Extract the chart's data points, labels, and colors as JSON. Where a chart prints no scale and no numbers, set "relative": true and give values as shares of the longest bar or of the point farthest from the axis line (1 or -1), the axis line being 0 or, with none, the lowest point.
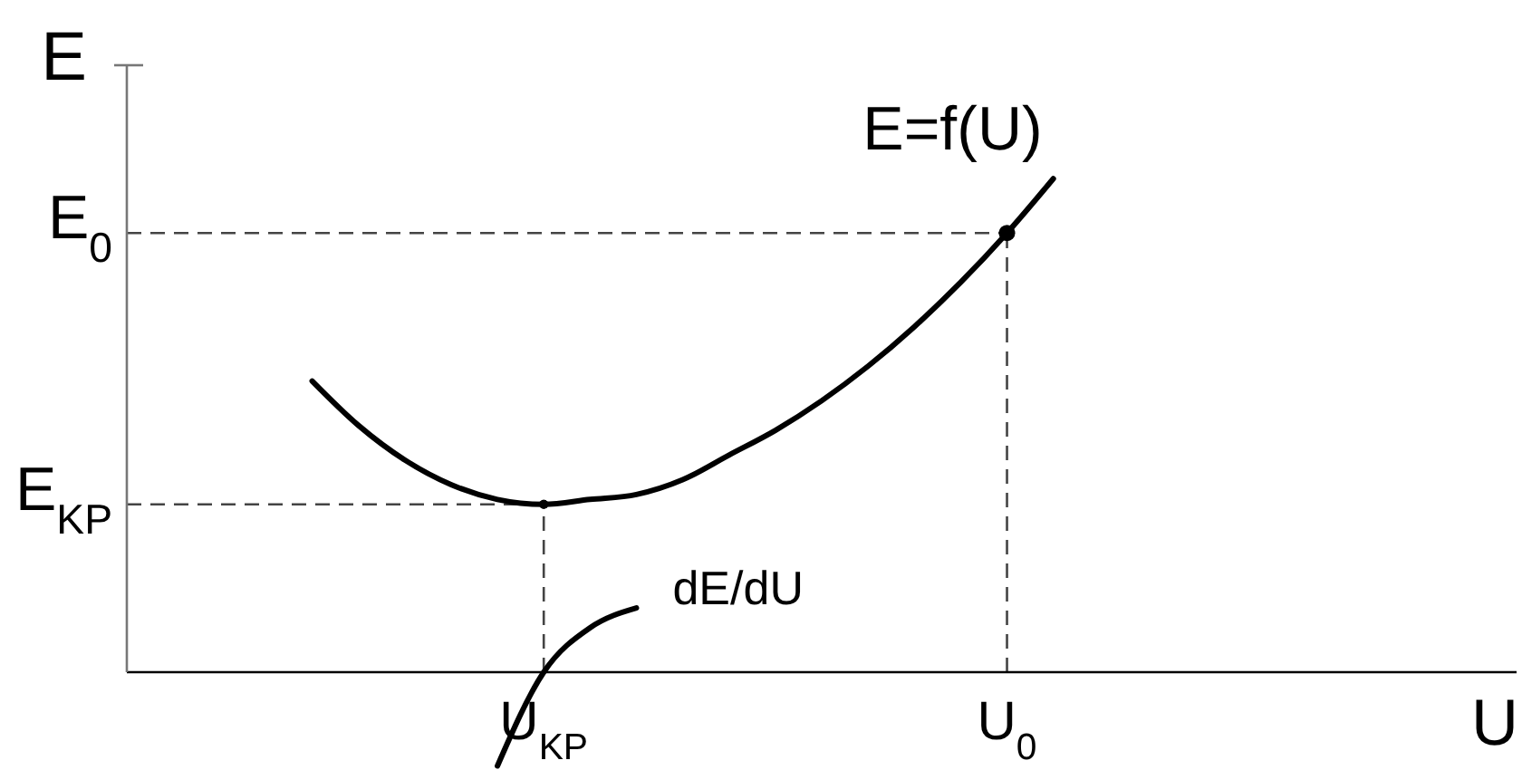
{
  "chart_data": {
    "type": "line",
    "xlabel": "U",
    "ylabel": "E",
    "relative": true,
    "marker": "none",
    "line_style": "solid",
    "categories": [
      null,
      null,
      null,
      null,
      null,
      null,
      null,
      null,
      null,
      "U$_{KP}$",
      null,
      null,
      null,
      null,
      null,
      null,
      null,
      null,
      null,
      "U$_{0}$",
      null,
      null,
      null,
      null,
      null,
      null,
      null,
      null,
      null,
      null,
      null
    ],
    "series": [
      {
        "name": "E=f(U)",
        "color": "#000000",
        "values": [
          null,
          null,
          null,
          null,
          0.59,
          0.5,
          0.43,
          0.38,
          0.35,
          0.34,
          0.35,
          0.36,
          0.39,
          0.44,
          0.49,
          0.55,
          0.62,
          0.7,
          0.79,
          0.89,
          1.0,
          null,
          null,
          null,
          null,
          null,
          null,
          null,
          null,
          null,
          null
        ]
      },
      {
        "name": "dE/dU",
        "color": "#000000",
        "values": [
          null,
          null,
          null,
          null,
          null,
          null,
          null,
          null,
          -0.19,
          0,
          0.09,
          0.13,
          null,
          null,
          null,
          null,
          null,
          null,
          null,
          null,
          null,
          null,
          null,
          null,
          null,
          null,
          null,
          null,
          null,
          null,
          null
        ]
      },
      {
        "type": "scatter",
        "marker": "circle",
        "color": "#000000",
        "values": [
          null,
          null,
          null,
          null,
          null,
          null,
          null,
          null,
          null,
          null,
          null,
          null,
          null,
          null,
          null,
          null,
          null,
          null,
          null,
          0.89,
          null,
          null,
          null,
          null,
          null,
          null,
          null,
          null,
          null,
          null,
          null
        ]
      }
    ],
    "ref_lines": [
      {
        "axis": "y",
        "value": 0.89,
        "label": "E$_{0}$",
        "color": "#444444",
        "line_style": "dashed"
      },
      {
        "axis": "y",
        "value": 0.34,
        "label": "E$_{KP}$",
        "color": "#444444",
        "line_style": "dashed"
      },
      {
        "axis": "x",
        "value": "U$_{KP}$",
        "color": "#444444",
        "line_style": "dashed"
      },
      {
        "axis": "x",
        "value": "U$_{0}$",
        "color": "#444444",
        "line_style": "dashed"
      }
    ]
  }
}
